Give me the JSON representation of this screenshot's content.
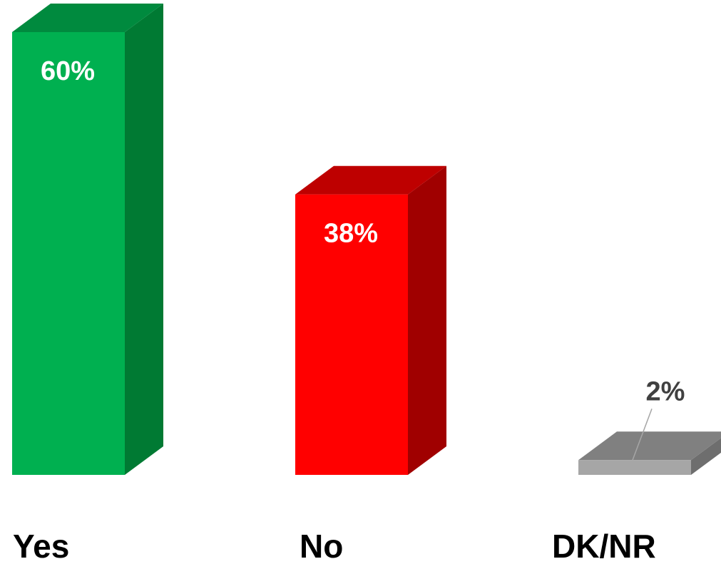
{
  "chart_data": {
    "type": "bar",
    "categories": [
      "Yes",
      "No",
      "DK/NR"
    ],
    "values": [
      60,
      38,
      2
    ],
    "value_labels": [
      "60%",
      "38%",
      "2%"
    ],
    "ylim": [
      0,
      60
    ],
    "grid": false,
    "legend": "none",
    "style": "3d-columns",
    "colors": {
      "Yes": {
        "front": "#00B050",
        "side": "#007A33",
        "top": "#008A3E"
      },
      "No": {
        "front": "#FF0000",
        "side": "#A00000",
        "top": "#BE0000"
      },
      "DK/NR": {
        "front": "#A6A6A6",
        "side": "#6E6E6E",
        "top": "#808080"
      }
    },
    "label_colors": {
      "inside": "#FFFFFF",
      "outside": "#404040",
      "leader": "#A6A6A6"
    }
  }
}
